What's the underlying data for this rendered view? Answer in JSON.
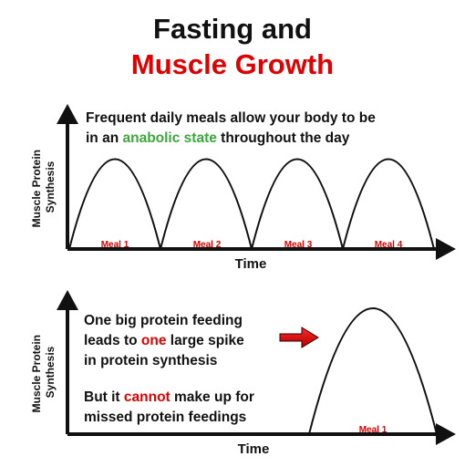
{
  "title": {
    "line1": "Fasting and",
    "line2": "Muscle Growth"
  },
  "panel1": {
    "ylabel": "Muscle Protein Synthesis",
    "xlabel": "Time",
    "caption_line1": "Frequent daily meals allow your body to be",
    "caption_line2_pre": "in an ",
    "caption_line2_highlight": "anabolic state",
    "caption_line2_post": " throughout the day",
    "meals": [
      "Meal 1",
      "Meal 2",
      "Meal 3",
      "Meal 4"
    ]
  },
  "panel2": {
    "ylabel": "Muscle Protein Synthesis",
    "xlabel": "Time",
    "caption_line1": "One big protein feeding",
    "caption_line2_pre": "leads to ",
    "caption_line2_highlight": "one",
    "caption_line2_post": " large spike",
    "caption_line3": "in protein synthesis",
    "caption_line4_pre": "But it ",
    "caption_line4_highlight": "cannot",
    "caption_line4_post": " make up for",
    "caption_line5": "missed protein feedings",
    "meals": [
      "Meal 1"
    ]
  },
  "colors": {
    "title_accent": "#e00000",
    "anabolic": "#3aa83a",
    "meal_label": "#e00000",
    "arrow": "#e00000"
  }
}
